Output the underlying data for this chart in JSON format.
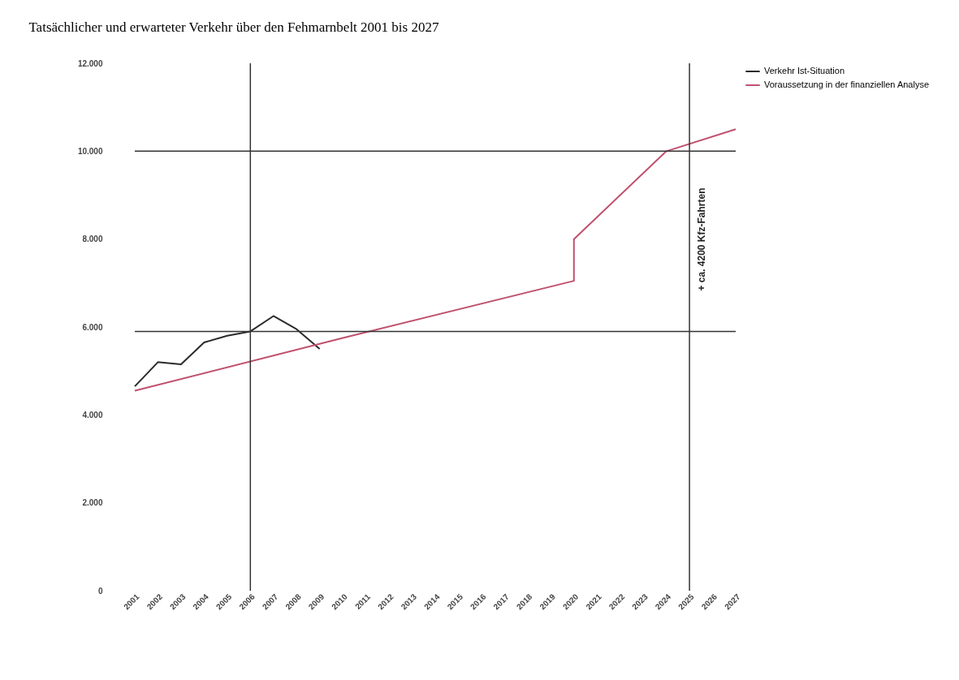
{
  "chart_data": {
    "type": "line",
    "title": "Tatsächlicher und erwarteter Verkehr über den Fehmarnbelt 2001 bis 2027",
    "xlim": [
      2001,
      2027
    ],
    "xticks": [
      2001,
      2002,
      2003,
      2004,
      2005,
      2006,
      2007,
      2008,
      2009,
      2010,
      2011,
      2012,
      2013,
      2014,
      2015,
      2016,
      2017,
      2018,
      2019,
      2020,
      2021,
      2022,
      2023,
      2024,
      2025,
      2026,
      2027
    ],
    "ylim": [
      0,
      12000
    ],
    "yticks": [
      {
        "value": 0,
        "label": "0"
      },
      {
        "value": 2000,
        "label": "2.000"
      },
      {
        "value": 4000,
        "label": "4.000"
      },
      {
        "value": 6000,
        "label": "6.000"
      },
      {
        "value": 8000,
        "label": "8.000"
      },
      {
        "value": 10000,
        "label": "10.000"
      },
      {
        "value": 12000,
        "label": "12.000"
      }
    ],
    "series": [
      {
        "name": "Verkehr Ist-Situation",
        "color": "#2b2b2b",
        "x": [
          2001,
          2002,
          2003,
          2004,
          2005,
          2006,
          2007,
          2008,
          2009
        ],
        "values": [
          4650,
          5200,
          5150,
          5650,
          5800,
          5900,
          6250,
          5950,
          5500
        ]
      },
      {
        "name": "Voraussetzung in der finanziellen Analyse",
        "color": "#c0506e",
        "x": [
          2001,
          2010,
          2020,
          2020,
          2024,
          2027
        ],
        "values": [
          4550,
          5750,
          7050,
          8000,
          10000,
          10500
        ]
      }
    ],
    "ref_lines": [
      {
        "axis": "y",
        "value": 5900,
        "color": "#333333"
      },
      {
        "axis": "y",
        "value": 10000,
        "color": "#333333"
      },
      {
        "axis": "x",
        "value": 2006,
        "color": "#333333"
      },
      {
        "axis": "x",
        "value": 2025,
        "color": "#333333"
      }
    ],
    "annotations": [
      "+ ca. 4200 Kfz-Fahrten"
    ],
    "grid": false,
    "legend": "right",
    "marker": "none",
    "line_style": "solid"
  }
}
